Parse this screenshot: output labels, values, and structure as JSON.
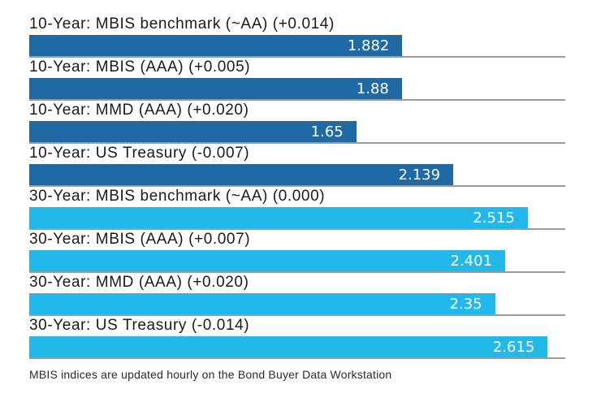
{
  "chart_data": {
    "type": "bar",
    "orientation": "horizontal",
    "title": "",
    "xlabel": "",
    "ylabel": "",
    "xlim": [
      0,
      2.704
    ],
    "grid": false,
    "legend": false,
    "value_labels_inside_bars": true,
    "colors": {
      "ten_year_series": "#1f6aa5",
      "thirty_year_series": "#22b8e9",
      "axis_line": "#9a9a9a",
      "value_label_text": "#ffffff",
      "category_label_text": "#1a1a1a"
    },
    "bars": [
      {
        "label": "10-Year: MBIS benchmark (~AA) (+0.014)",
        "value": 1.882,
        "display_value": "1.882",
        "color": "#1f6aa5",
        "group": "10-Year"
      },
      {
        "label": "10-Year: MBIS (AAA) (+0.005)",
        "value": 1.88,
        "display_value": "1.88",
        "color": "#1f6aa5",
        "group": "10-Year"
      },
      {
        "label": "10-Year: MMD (AAA) (+0.020)",
        "value": 1.65,
        "display_value": "1.65",
        "color": "#1f6aa5",
        "group": "10-Year"
      },
      {
        "label": "10-Year: US Treasury (-0.007)",
        "value": 2.139,
        "display_value": "2.139",
        "color": "#1f6aa5",
        "group": "10-Year"
      },
      {
        "label": "30-Year: MBIS benchmark (~AA) (0.000)",
        "value": 2.515,
        "display_value": "2.515",
        "color": "#22b8e9",
        "group": "30-Year"
      },
      {
        "label": "30-Year: MBIS (AAA) (+0.007)",
        "value": 2.401,
        "display_value": "2.401",
        "color": "#22b8e9",
        "group": "30-Year"
      },
      {
        "label": "30-Year: MMD (AAA) (+0.020)",
        "value": 2.35,
        "display_value": "2.35",
        "color": "#22b8e9",
        "group": "30-Year"
      },
      {
        "label": "30-Year: US Treasury (-0.014)",
        "value": 2.615,
        "display_value": "2.615",
        "color": "#22b8e9",
        "group": "30-Year"
      }
    ],
    "footer": "MBIS indices are updated hourly on the Bond Buyer Data Workstation"
  }
}
